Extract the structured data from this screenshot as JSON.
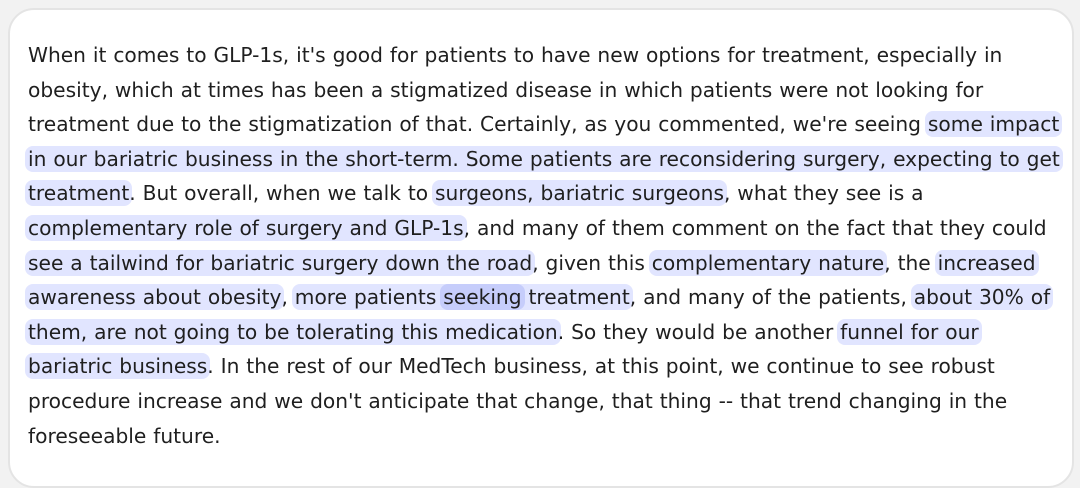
{
  "quote": {
    "segments": [
      {
        "text": "When it comes to GLP-1s, it's good for patients to have new options for treatment, especially in obesity, which at times has been a stigmatized disease in which patients were not looking for treatment due to the stigmatization of that. Certainly, as you commented, we're seeing ",
        "highlight": false
      },
      {
        "text": "some impact in our bariatric business in the short-term. Some patients are reconsidering surgery, expecting to get treatment",
        "highlight": true
      },
      {
        "text": ". But overall, when we talk to ",
        "highlight": false
      },
      {
        "text": "surgeons, bariatric surgeons",
        "highlight": true
      },
      {
        "text": ", what they see is a ",
        "highlight": false
      },
      {
        "text": "complementary role of surgery and GLP-1s",
        "highlight": true
      },
      {
        "text": ", and many of them comment on the fact that they could ",
        "highlight": false
      },
      {
        "text": "see a tailwind for bariatric surgery down the road",
        "highlight": true
      },
      {
        "text": ", given this ",
        "highlight": false
      },
      {
        "text": "complementary nature",
        "highlight": true
      },
      {
        "text": ", the ",
        "highlight": false
      },
      {
        "text": "increased awareness about obesity",
        "highlight": true
      },
      {
        "text": ", ",
        "highlight": false
      },
      {
        "text": "more patients ",
        "highlight": true
      },
      {
        "text": "seeking",
        "highlight": "strong"
      },
      {
        "text": " treatment",
        "highlight": true
      },
      {
        "text": ", and many of the patients, ",
        "highlight": false
      },
      {
        "text": "about 30% of them, are not going to be tolerating this medication",
        "highlight": true
      },
      {
        "text": ". So they would be another ",
        "highlight": false
      },
      {
        "text": "funnel for our bariatric business",
        "highlight": true
      },
      {
        "text": ". In the rest of our MedTech business, at this point, we continue to see robust procedure increase and we don't anticipate that change, that thing -- that trend changing in the foreseeable future.",
        "highlight": false
      }
    ]
  },
  "colors": {
    "highlight": "#e1e5ff",
    "highlight_strong": "#c6cdfb",
    "text": "#1f1f1f"
  }
}
